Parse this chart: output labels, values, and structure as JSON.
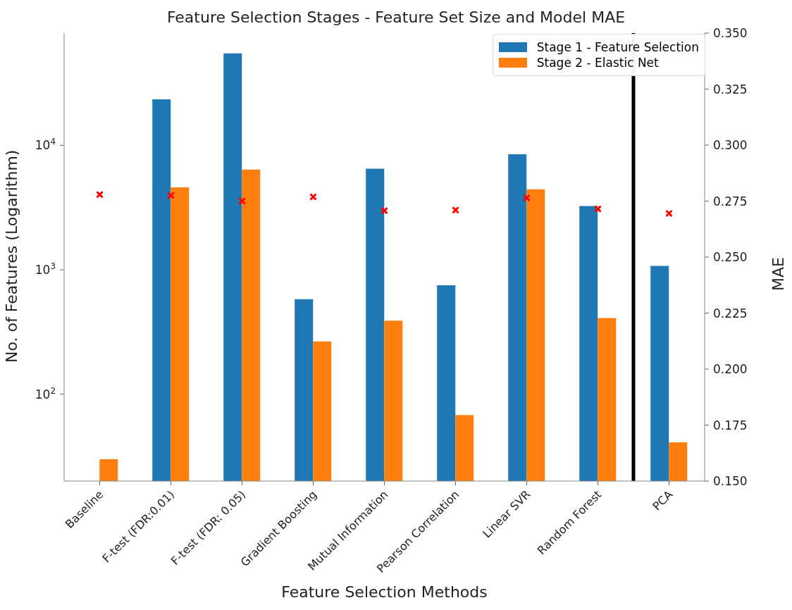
{
  "chart_data": {
    "type": "bar",
    "title": "Feature Selection Stages - Feature Set Size and Model MAE",
    "xlabel": "Feature Selection Methods",
    "ylabel": "No. of Features (Logarithm)",
    "y2label": "MAE",
    "categories": [
      "Baseline",
      "F-test (FDR:0.01)",
      "F-test (FDR: 0.05)",
      "Gradient Boosting",
      "Mutual Information",
      "Pearson Correlation",
      "Linear SVR",
      "Random Forest",
      "PCA"
    ],
    "series": [
      {
        "name": "Stage 1 - Feature Selection",
        "color": "#1f77b4",
        "values": [
          null,
          23500,
          55000,
          580,
          6500,
          750,
          8500,
          3260,
          1075
        ]
      },
      {
        "name": "Stage 2 - Elastic Net",
        "color": "#ff7f0e",
        "values": [
          30,
          4600,
          6400,
          265,
          390,
          68,
          4440,
          410,
          41
        ]
      },
      {
        "type": "scatter",
        "axis": "y2",
        "color": "#ff0000",
        "marker": "cross",
        "values": [
          0.2779,
          0.2775,
          0.275,
          0.2769,
          0.2707,
          0.271,
          0.2764,
          0.2715,
          0.2695
        ]
      }
    ],
    "log": "y",
    "ylim": [
      20,
      80000
    ],
    "yticks": [
      {
        "value": 100,
        "label": "10$^{2}$"
      },
      {
        "value": 1000,
        "label": "10$^{3}$"
      },
      {
        "value": 10000,
        "label": "10$^{4}$"
      }
    ],
    "y2lim": [
      0.15,
      0.35
    ],
    "y2ticks": [
      {
        "value": 0.15,
        "label": "0.150"
      },
      0.175,
      {
        "value": 0.2,
        "label": "0.200"
      },
      0.225,
      {
        "value": 0.25,
        "label": "0.250"
      },
      0.275,
      {
        "value": 0.3,
        "label": "0.300"
      },
      0.325,
      {
        "value": 0.35,
        "label": "0.350"
      }
    ],
    "legend": "top right"
  }
}
